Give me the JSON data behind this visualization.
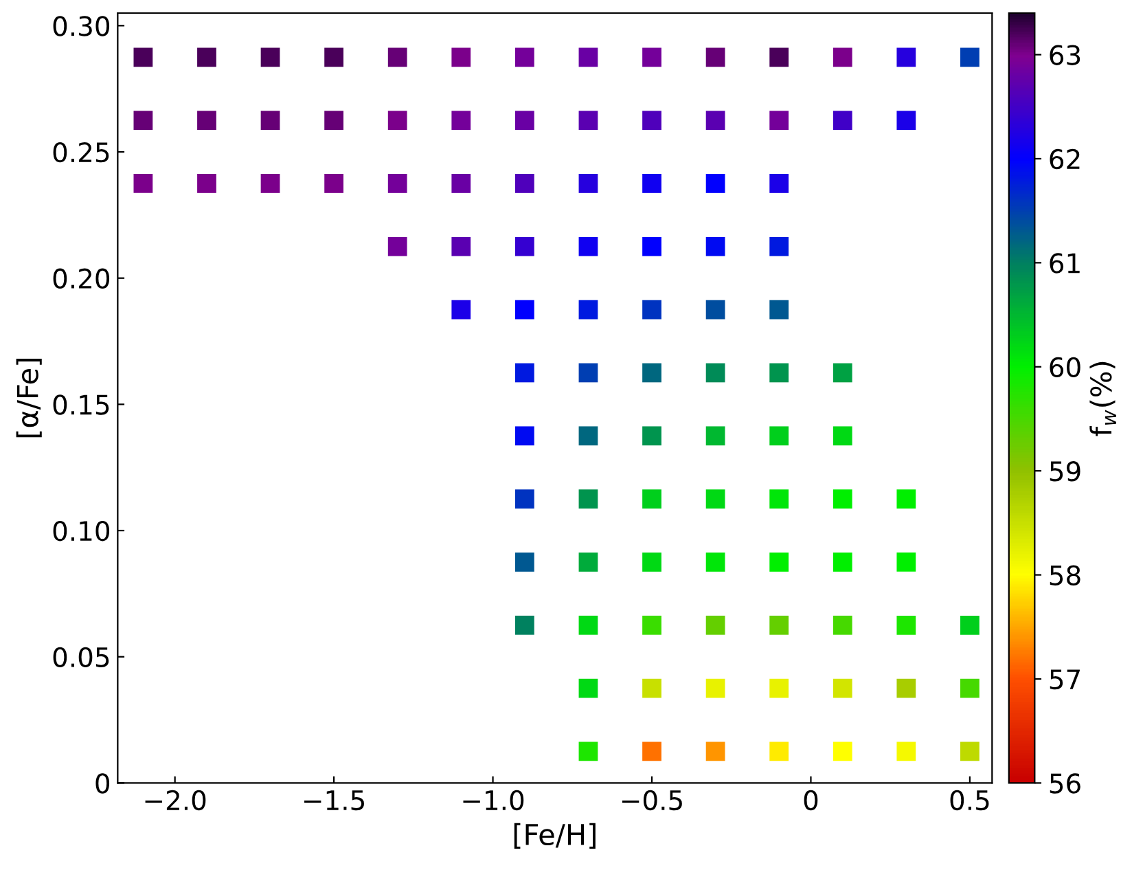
{
  "chart_data": {
    "type": "scatter",
    "xlabel": "[Fe/H]",
    "ylabel": "[α/Fe]",
    "clabel": "f$_{w}$(%)",
    "marker": "square",
    "grid": false,
    "xlim": [
      -2.18,
      0.57
    ],
    "ylim": [
      0,
      0.305
    ],
    "xticks": [
      {
        "value": -2.0,
        "label": "−2.0"
      },
      {
        "value": -1.5,
        "label": "−1.5"
      },
      {
        "value": -1.0,
        "label": "−1.0"
      },
      {
        "value": -0.5,
        "label": "−0.5"
      },
      0,
      0.5
    ],
    "yticks": [
      0,
      0.05,
      {
        "value": 0.1,
        "label": "0.10"
      },
      0.15,
      {
        "value": 0.2,
        "label": "0.20"
      },
      0.25,
      {
        "value": 0.3,
        "label": "0.30"
      }
    ],
    "clim": [
      56,
      63.4
    ],
    "cticks": [
      56,
      57,
      58,
      59,
      60,
      61,
      62,
      63
    ],
    "series": [
      {
        "x": [
          -2.1,
          -1.9,
          -1.7,
          -1.5,
          -1.3,
          -1.1,
          -0.9,
          -0.7,
          -0.5,
          -0.3,
          -0.1,
          0.1,
          0.3,
          0.5,
          -2.1,
          -1.9,
          -1.7,
          -1.5,
          -1.3,
          -1.1,
          -0.9,
          -0.7,
          -0.5,
          -0.3,
          -0.1,
          0.1,
          0.3,
          -2.1,
          -1.9,
          -1.7,
          -1.5,
          -1.3,
          -1.1,
          -0.9,
          -0.7,
          -0.5,
          -0.3,
          -0.1,
          -1.3,
          -1.1,
          -0.9,
          -0.7,
          -0.5,
          -0.3,
          -0.1,
          -1.1,
          -0.9,
          -0.7,
          -0.5,
          -0.3,
          -0.1,
          -0.9,
          -0.7,
          -0.5,
          -0.3,
          -0.1,
          0.1,
          -0.9,
          -0.7,
          -0.5,
          -0.3,
          -0.1,
          0.1,
          -0.9,
          -0.7,
          -0.5,
          -0.3,
          -0.1,
          0.1,
          0.3,
          -0.9,
          -0.7,
          -0.5,
          -0.3,
          -0.1,
          0.1,
          0.3,
          -0.9,
          -0.7,
          -0.5,
          -0.3,
          -0.1,
          0.1,
          0.3,
          0.5,
          -0.7,
          -0.5,
          -0.3,
          -0.1,
          0.1,
          0.3,
          0.5,
          -0.7,
          -0.5,
          -0.3,
          -0.1,
          0.1,
          0.3,
          0.5
        ],
        "values": [
          0.2875,
          0.2875,
          0.2875,
          0.2875,
          0.2875,
          0.2875,
          0.2875,
          0.2875,
          0.2875,
          0.2875,
          0.2875,
          0.2875,
          0.2875,
          0.2875,
          0.2625,
          0.2625,
          0.2625,
          0.2625,
          0.2625,
          0.2625,
          0.2625,
          0.2625,
          0.2625,
          0.2625,
          0.2625,
          0.2625,
          0.2625,
          0.2375,
          0.2375,
          0.2375,
          0.2375,
          0.2375,
          0.2375,
          0.2375,
          0.2375,
          0.2375,
          0.2375,
          0.2375,
          0.2125,
          0.2125,
          0.2125,
          0.2125,
          0.2125,
          0.2125,
          0.2125,
          0.1875,
          0.1875,
          0.1875,
          0.1875,
          0.1875,
          0.1875,
          0.1625,
          0.1625,
          0.1625,
          0.1625,
          0.1625,
          0.1625,
          0.1375,
          0.1375,
          0.1375,
          0.1375,
          0.1375,
          0.1375,
          0.1125,
          0.1125,
          0.1125,
          0.1125,
          0.1125,
          0.1125,
          0.1125,
          0.0875,
          0.0875,
          0.0875,
          0.0875,
          0.0875,
          0.0875,
          0.0875,
          0.0625,
          0.0625,
          0.0625,
          0.0625,
          0.0625,
          0.0625,
          0.0625,
          0.0625,
          0.0375,
          0.0375,
          0.0375,
          0.0375,
          0.0375,
          0.0375,
          0.0375,
          0.0125,
          0.0125,
          0.0125,
          0.0125,
          0.0125,
          0.0125,
          0.0125
        ],
        "cvalues": [
          63.2,
          63.2,
          63.2,
          63.2,
          63.1,
          63.0,
          62.9,
          62.8,
          62.9,
          63.1,
          63.2,
          63.0,
          62.3,
          61.5,
          63.1,
          63.1,
          63.1,
          63.1,
          63.0,
          62.9,
          62.8,
          62.7,
          62.6,
          62.7,
          62.9,
          62.5,
          62.2,
          63.0,
          63.0,
          63.0,
          63.0,
          62.9,
          62.8,
          62.6,
          62.3,
          62.1,
          62.0,
          62.2,
          62.9,
          62.7,
          62.4,
          62.1,
          62.0,
          61.9,
          61.8,
          62.2,
          62.0,
          61.8,
          61.6,
          61.4,
          61.3,
          61.8,
          61.5,
          61.2,
          60.9,
          60.8,
          60.7,
          61.9,
          61.2,
          60.8,
          60.5,
          60.3,
          60.2,
          61.6,
          60.8,
          60.3,
          60.2,
          60.1,
          60.0,
          60.0,
          61.3,
          60.6,
          60.2,
          60.1,
          60.0,
          60.0,
          60.0,
          61.0,
          60.2,
          59.6,
          59.3,
          59.3,
          59.5,
          59.8,
          60.3,
          60.2,
          58.5,
          58.2,
          58.2,
          58.4,
          58.8,
          59.5,
          59.8,
          57.2,
          57.4,
          57.9,
          58.0,
          58.1,
          58.6
        ]
      }
    ]
  }
}
